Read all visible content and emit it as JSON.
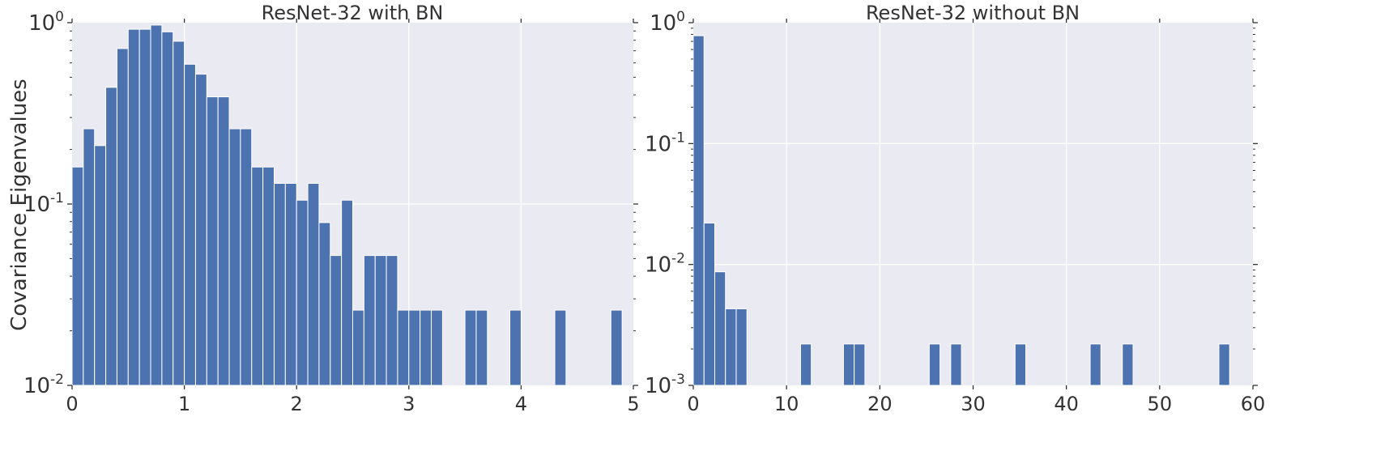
{
  "ylabel": "Covariance Eigenvalues",
  "chart_data": [
    {
      "type": "bar",
      "title": "ResNet-32 with BN",
      "xlabel": "",
      "ylabel": "Covariance Eigenvalues",
      "xlim": [
        0,
        5
      ],
      "ylim": [
        0.01,
        1
      ],
      "yscale": "log",
      "bar_color": "#4c72b0",
      "background": "#eaeaf2",
      "grid": true,
      "xticks": [
        "0",
        "1",
        "2",
        "3",
        "4",
        "5"
      ],
      "yticks": [
        {
          "base": "10",
          "exp": "-2"
        },
        {
          "base": "10",
          "exp": "-1"
        },
        {
          "base": "10",
          "exp": "0"
        }
      ],
      "bin_width": 0.1,
      "x": [
        0.0,
        0.1,
        0.2,
        0.3,
        0.4,
        0.5,
        0.6,
        0.7,
        0.8,
        0.9,
        1.0,
        1.1,
        1.2,
        1.3,
        1.4,
        1.5,
        1.6,
        1.7,
        1.8,
        1.9,
        2.0,
        2.1,
        2.2,
        2.3,
        2.4,
        2.5,
        2.6,
        2.7,
        2.8,
        2.9,
        3.0,
        3.1,
        3.2,
        3.5,
        3.6,
        3.9,
        4.3,
        4.8
      ],
      "values": [
        0.16,
        0.26,
        0.21,
        0.44,
        0.72,
        0.92,
        0.92,
        0.97,
        0.89,
        0.79,
        0.59,
        0.52,
        0.39,
        0.39,
        0.26,
        0.26,
        0.16,
        0.16,
        0.13,
        0.13,
        0.105,
        0.13,
        0.079,
        0.052,
        0.105,
        0.026,
        0.052,
        0.052,
        0.052,
        0.026,
        0.026,
        0.026,
        0.026,
        0.026,
        0.026,
        0.026,
        0.026,
        0.026
      ]
    },
    {
      "type": "bar",
      "title": "ResNet-32 without BN",
      "xlabel": "",
      "ylabel": "",
      "xlim": [
        0,
        60
      ],
      "ylim": [
        0.001,
        1
      ],
      "yscale": "log",
      "bar_color": "#4c72b0",
      "background": "#eaeaf2",
      "grid": true,
      "xticks": [
        "0",
        "10",
        "20",
        "30",
        "40",
        "50",
        "60"
      ],
      "yticks": [
        {
          "base": "10",
          "exp": "-3"
        },
        {
          "base": "10",
          "exp": "-2"
        },
        {
          "base": "10",
          "exp": "-1"
        },
        {
          "base": "10",
          "exp": "0"
        }
      ],
      "bin_width": 1.15,
      "x": [
        0.0,
        1.15,
        2.3,
        3.45,
        4.6,
        11.5,
        16.1,
        17.25,
        25.3,
        27.6,
        34.5,
        42.55,
        46.0,
        56.35
      ],
      "values": [
        0.78,
        0.022,
        0.0087,
        0.0043,
        0.0043,
        0.0022,
        0.0022,
        0.0022,
        0.0022,
        0.0022,
        0.0022,
        0.0022,
        0.0022,
        0.0022
      ]
    }
  ]
}
